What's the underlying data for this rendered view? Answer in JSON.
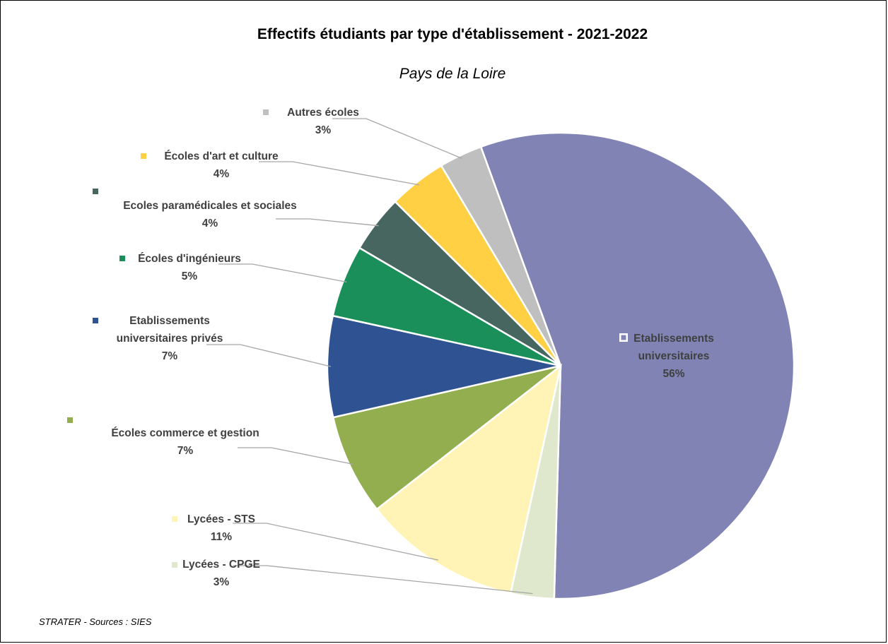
{
  "chart_data": {
    "type": "pie",
    "title": "Effectifs étudiants par type d'établissement - 2021-2022",
    "subtitle": "Pays de la Loire",
    "source": "STRATER - Sources : SIES",
    "values_unit": "%",
    "series": [
      {
        "key": "univ",
        "label_lines": [
          "Etablissements",
          "universitaires"
        ],
        "value": 56,
        "pct_label": "56%",
        "color": "#8083b4"
      },
      {
        "key": "cpge",
        "label_lines": [
          "Lycées - CPGE"
        ],
        "value": 3,
        "pct_label": "3%",
        "color": "#dfe7cc"
      },
      {
        "key": "sts",
        "label_lines": [
          "Lycées - STS"
        ],
        "value": 11,
        "pct_label": "11%",
        "color": "#fff4b5"
      },
      {
        "key": "commerce",
        "label_lines": [
          "Écoles commerce et gestion"
        ],
        "value": 7,
        "pct_label": "7%",
        "color": "#92ae4e"
      },
      {
        "key": "univ_prives",
        "label_lines": [
          "Etablissements",
          "universitaires privés"
        ],
        "value": 7,
        "pct_label": "7%",
        "color": "#2f5392"
      },
      {
        "key": "ingenieurs",
        "label_lines": [
          "Écoles d'ingénieurs"
        ],
        "value": 5,
        "pct_label": "5%",
        "color": "#1a8f5a"
      },
      {
        "key": "paramed",
        "label_lines": [
          "Ecoles paramédicales et sociales"
        ],
        "value": 4,
        "pct_label": "4%",
        "color": "#486660"
      },
      {
        "key": "art",
        "label_lines": [
          "Écoles d'art et culture"
        ],
        "value": 4,
        "pct_label": "4%",
        "color": "#ffcf44"
      },
      {
        "key": "autres",
        "label_lines": [
          "Autres écoles"
        ],
        "value": 3,
        "pct_label": "3%",
        "color": "#bfbfbf"
      }
    ]
  }
}
